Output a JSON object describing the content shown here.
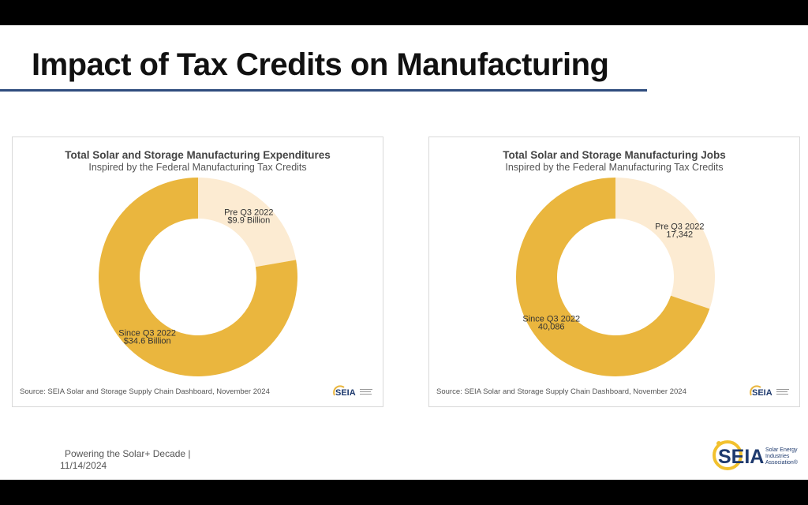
{
  "slide": {
    "title": "Impact of Tax Credits on Manufacturing",
    "footer_text": "Powering the Solar+ Decade |",
    "footer_date": "11/14/2024",
    "logo": {
      "mark": "SEIA",
      "tagline": [
        "Solar Energy",
        "Industries",
        "Association®"
      ]
    }
  },
  "colors": {
    "accent": "#eab63e",
    "light": "#fcebd2",
    "rule": "#2f4d7e"
  },
  "charts": [
    {
      "title": "Total Solar and Storage Manufacturing Expenditures",
      "subtitle": "Inspired by the Federal Manufacturing Tax Credits",
      "source": "Source: SEIA Solar and Storage Supply Chain Dashboard, November 2024",
      "logo_mark": "SEIA",
      "slices": [
        {
          "label": "Pre Q3 2022",
          "value_label": "$9.9 Billion"
        },
        {
          "label": "Since Q3 2022",
          "value_label": "$34.6 Billion"
        }
      ]
    },
    {
      "title": "Total Solar and Storage Manufacturing Jobs",
      "subtitle": "Inspired by the Federal Manufacturing Tax Credits",
      "source": "Source: SEIA Solar and Storage Supply Chain Dashboard, November 2024",
      "logo_mark": "SEIA",
      "slices": [
        {
          "label": "Pre Q3 2022",
          "value_label": "17,342"
        },
        {
          "label": "Since Q3 2022",
          "value_label": "40,086"
        }
      ]
    }
  ],
  "chart_data": [
    {
      "type": "pie",
      "title": "Total Solar and Storage Manufacturing Expenditures",
      "subtitle": "Inspired by the Federal Manufacturing Tax Credits",
      "categories": [
        "Pre Q3 2022",
        "Since Q3 2022"
      ],
      "values": [
        9.9,
        34.6
      ],
      "colors": [
        "#fcebd2",
        "#eab63e"
      ],
      "unit": "Billion"
    },
    {
      "type": "pie",
      "title": "Total Solar and Storage Manufacturing Jobs",
      "subtitle": "Inspired by the Federal Manufacturing Tax Credits",
      "categories": [
        "Pre Q3 2022",
        "Since Q3 2022"
      ],
      "values": [
        17342,
        40086
      ],
      "colors": [
        "#fcebd2",
        "#eab63e"
      ]
    }
  ]
}
